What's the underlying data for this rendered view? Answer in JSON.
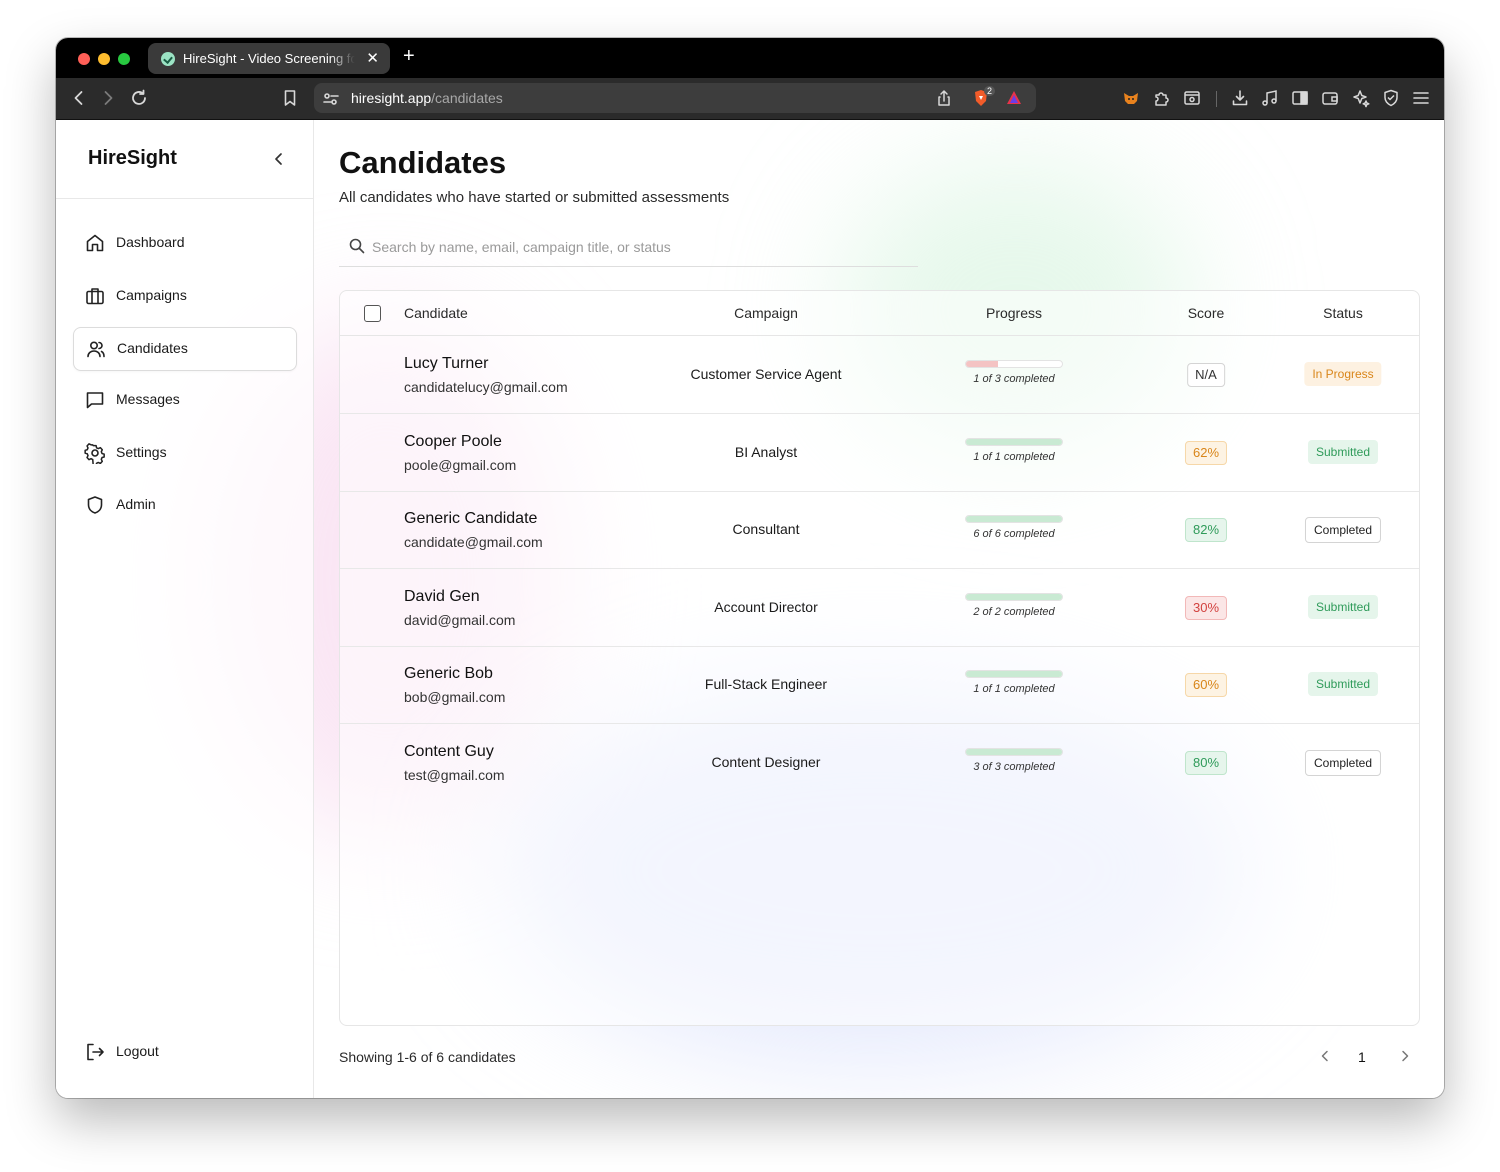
{
  "browser": {
    "tab_title": "HireSight - Video Screening for",
    "url_host": "hiresight.app",
    "url_path": "/candidates",
    "brave_badge": "2"
  },
  "sidebar": {
    "brand": "HireSight",
    "items": [
      {
        "label": "Dashboard",
        "icon": "home-icon"
      },
      {
        "label": "Campaigns",
        "icon": "briefcase-icon"
      },
      {
        "label": "Candidates",
        "icon": "users-icon",
        "active": true
      },
      {
        "label": "Messages",
        "icon": "message-icon"
      },
      {
        "label": "Settings",
        "icon": "gear-icon"
      },
      {
        "label": "Admin",
        "icon": "shield-icon"
      }
    ],
    "logout_label": "Logout"
  },
  "main": {
    "title": "Candidates",
    "subtitle": "All candidates who have started or submitted assessments",
    "search_placeholder": "Search by name, email, campaign title, or status",
    "columns": [
      "Candidate",
      "Campaign",
      "Progress",
      "Score",
      "Status"
    ],
    "rows": [
      {
        "name": "Lucy Turner",
        "email": "candidatelucy@gmail.com",
        "campaign": "Customer Service Agent",
        "progress_done": 1,
        "progress_total": 3,
        "progress_text": "1 of 3 completed",
        "score": "N/A",
        "score_tone": "na",
        "status": "In Progress",
        "status_tone": "progress"
      },
      {
        "name": "Cooper Poole",
        "email": "poole@gmail.com",
        "campaign": "BI Analyst",
        "progress_done": 1,
        "progress_total": 1,
        "progress_text": "1 of 1 completed",
        "score": "62%",
        "score_tone": "amber",
        "status": "Submitted",
        "status_tone": "submitted"
      },
      {
        "name": "Generic Candidate",
        "email": "candidate@gmail.com",
        "campaign": "Consultant",
        "progress_done": 6,
        "progress_total": 6,
        "progress_text": "6 of 6 completed",
        "score": "82%",
        "score_tone": "green",
        "status": "Completed",
        "status_tone": "completed"
      },
      {
        "name": "David Gen",
        "email": "david@gmail.com",
        "campaign": "Account Director",
        "progress_done": 2,
        "progress_total": 2,
        "progress_text": "2 of 2 completed",
        "score": "30%",
        "score_tone": "red",
        "status": "Submitted",
        "status_tone": "submitted"
      },
      {
        "name": "Generic Bob",
        "email": "bob@gmail.com",
        "campaign": "Full-Stack Engineer",
        "progress_done": 1,
        "progress_total": 1,
        "progress_text": "1 of 1 completed",
        "score": "60%",
        "score_tone": "amber",
        "status": "Submitted",
        "status_tone": "submitted"
      },
      {
        "name": "Content Guy",
        "email": "test@gmail.com",
        "campaign": "Content Designer",
        "progress_done": 3,
        "progress_total": 3,
        "progress_text": "3 of 3 completed",
        "score": "80%",
        "score_tone": "green",
        "status": "Completed",
        "status_tone": "completed"
      }
    ],
    "footer_text": "Showing 1-6 of 6 candidates",
    "current_page": "1"
  }
}
